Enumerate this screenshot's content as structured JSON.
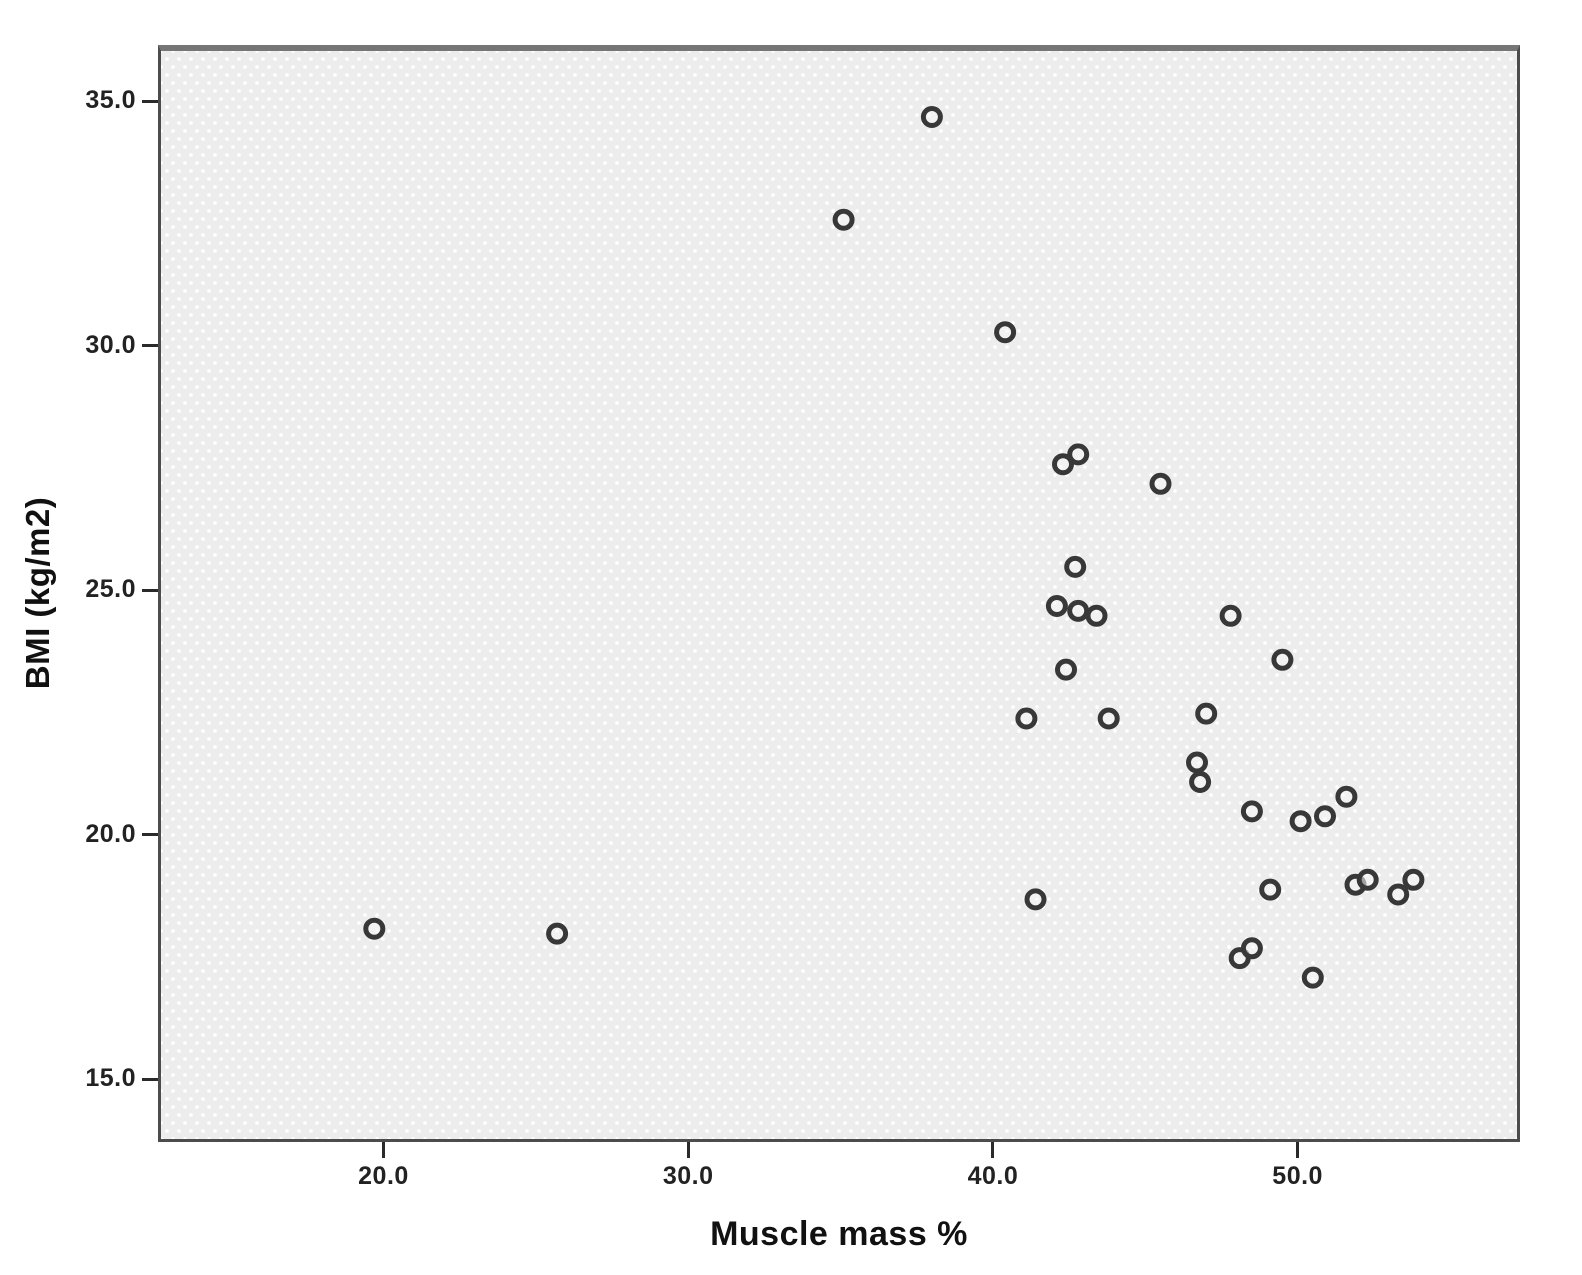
{
  "page": {
    "background": "#ffffff"
  },
  "chart_data": {
    "type": "scatter",
    "title": "",
    "xlabel": "Muscle mass %",
    "ylabel": "BMI (kg/m2)",
    "xlim": [
      12.6,
      57.1
    ],
    "ylim": [
      13.9,
      36.15
    ],
    "grid": false,
    "legend": "none",
    "x_ticks": {
      "values": [
        20,
        30,
        40,
        50
      ],
      "labels": [
        "20.0",
        "30.0",
        "40.0",
        "50.0"
      ]
    },
    "y_ticks": {
      "values": [
        15,
        20,
        25,
        30,
        35
      ],
      "labels": [
        "15.0",
        "20.0",
        "25.0",
        "30.0",
        "35.0"
      ]
    },
    "marker": {
      "shape": "open-circle",
      "stroke_color": "#383838",
      "fill_color": "#f6f6f6",
      "fill_opacity": 0.55,
      "radius_px": 8.5,
      "stroke_width_px": 5
    },
    "plot_background": {
      "fill": "#ededed",
      "pattern": "white-dot-grid",
      "dot_color": "#ffffff",
      "border_color": "#4c4c4c"
    },
    "axis_text_color": "#222222",
    "points": [
      [
        37.9,
        34.8
      ],
      [
        35.0,
        32.7
      ],
      [
        40.3,
        30.4
      ],
      [
        42.2,
        27.7
      ],
      [
        42.7,
        27.9
      ],
      [
        45.4,
        27.3
      ],
      [
        42.6,
        25.6
      ],
      [
        42.0,
        24.8
      ],
      [
        42.7,
        24.7
      ],
      [
        43.3,
        24.6
      ],
      [
        47.7,
        24.6
      ],
      [
        49.4,
        23.7
      ],
      [
        42.3,
        23.5
      ],
      [
        41.0,
        22.5
      ],
      [
        43.7,
        22.5
      ],
      [
        46.9,
        22.6
      ],
      [
        46.6,
        21.6
      ],
      [
        46.7,
        21.2
      ],
      [
        48.4,
        20.6
      ],
      [
        50.0,
        20.4
      ],
      [
        50.8,
        20.5
      ],
      [
        51.5,
        20.9
      ],
      [
        49.0,
        19.0
      ],
      [
        51.8,
        19.1
      ],
      [
        52.2,
        19.2
      ],
      [
        53.2,
        18.9
      ],
      [
        53.7,
        19.2
      ],
      [
        19.6,
        18.2
      ],
      [
        25.6,
        18.1
      ],
      [
        41.3,
        18.8
      ],
      [
        48.0,
        17.6
      ],
      [
        48.4,
        17.8
      ],
      [
        50.4,
        17.2
      ]
    ]
  }
}
